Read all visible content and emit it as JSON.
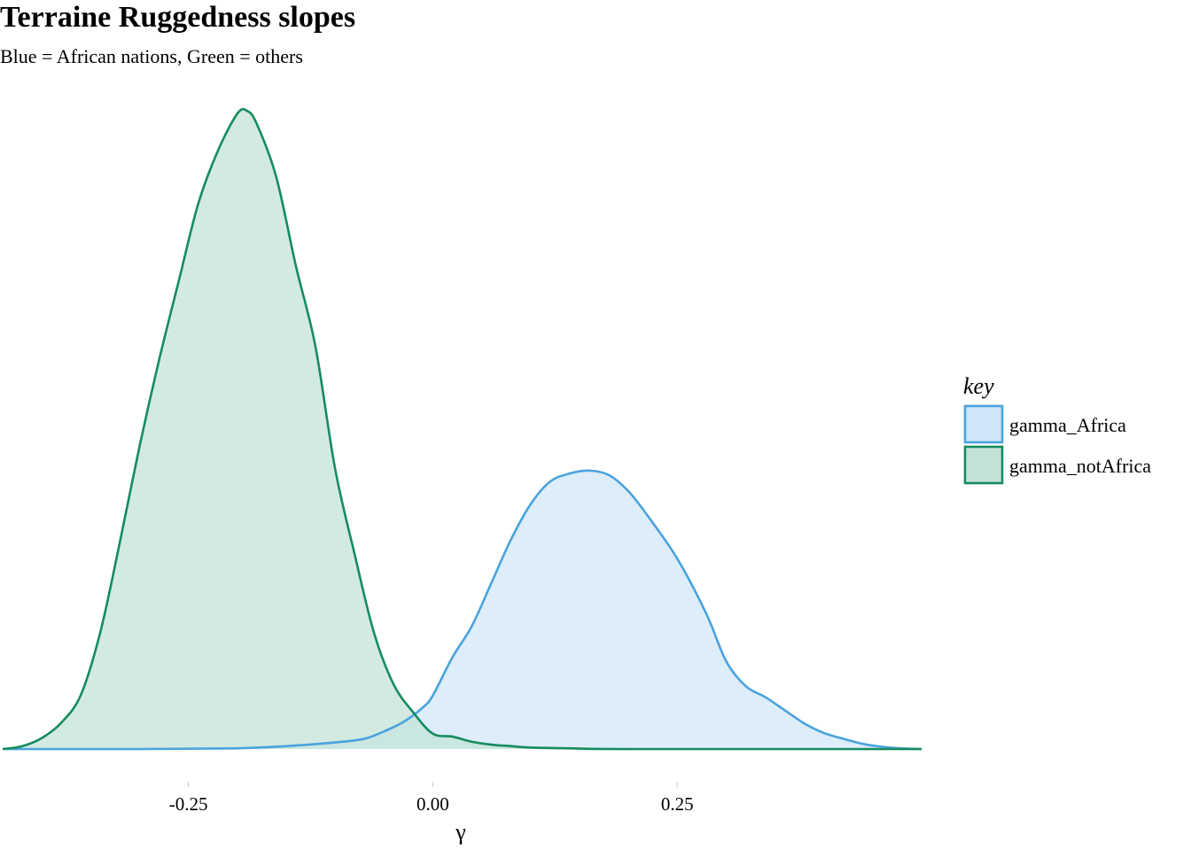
{
  "chart_data": {
    "type": "area",
    "title": "Terraine Ruggedness slopes",
    "subtitle": "Blue = African nations, Green = others",
    "xlabel": "γ",
    "ylabel": "",
    "xlim": [
      -0.44,
      0.5
    ],
    "xticks": [
      -0.25,
      0.0,
      0.25
    ],
    "xtick_labels": [
      "-0.25",
      "0.00",
      "0.25"
    ],
    "grid": false,
    "legend": {
      "title": "key",
      "position": "right"
    },
    "series": [
      {
        "name": "gamma_Africa",
        "line_color": "#4aa3de",
        "fill_color": "#d1e7f7",
        "x": [
          -0.44,
          -0.3,
          -0.2,
          -0.15,
          -0.1,
          -0.07,
          -0.05,
          -0.03,
          -0.01,
          0.0,
          0.02,
          0.04,
          0.06,
          0.08,
          0.1,
          0.12,
          0.14,
          0.16,
          0.18,
          0.2,
          0.22,
          0.25,
          0.28,
          0.3,
          0.32,
          0.34,
          0.36,
          0.38,
          0.4,
          0.42,
          0.44,
          0.46,
          0.48,
          0.5
        ],
        "y": [
          0.0,
          0.0,
          0.01,
          0.04,
          0.09,
          0.14,
          0.24,
          0.37,
          0.57,
          0.73,
          1.25,
          1.68,
          2.27,
          2.86,
          3.34,
          3.65,
          3.76,
          3.8,
          3.74,
          3.52,
          3.18,
          2.6,
          1.84,
          1.2,
          0.86,
          0.71,
          0.53,
          0.35,
          0.22,
          0.14,
          0.07,
          0.03,
          0.01,
          0.0
        ]
      },
      {
        "name": "gamma_notAfrica",
        "line_color": "#168c5e",
        "fill_color": "#c3e3d8",
        "x": [
          -0.44,
          -0.42,
          -0.4,
          -0.38,
          -0.36,
          -0.34,
          -0.32,
          -0.3,
          -0.28,
          -0.26,
          -0.24,
          -0.22,
          -0.2,
          -0.19,
          -0.18,
          -0.16,
          -0.14,
          -0.12,
          -0.1,
          -0.08,
          -0.06,
          -0.04,
          -0.02,
          0.0,
          0.02,
          0.04,
          0.06,
          0.08,
          0.1,
          0.14,
          0.2,
          0.5
        ],
        "y": [
          0.0,
          0.04,
          0.15,
          0.36,
          0.74,
          1.6,
          2.83,
          4.13,
          5.31,
          6.38,
          7.44,
          8.16,
          8.67,
          8.71,
          8.53,
          7.8,
          6.59,
          5.49,
          3.83,
          2.66,
          1.58,
          0.88,
          0.5,
          0.21,
          0.17,
          0.1,
          0.06,
          0.04,
          0.02,
          0.01,
          0.0,
          0.0
        ]
      }
    ]
  }
}
